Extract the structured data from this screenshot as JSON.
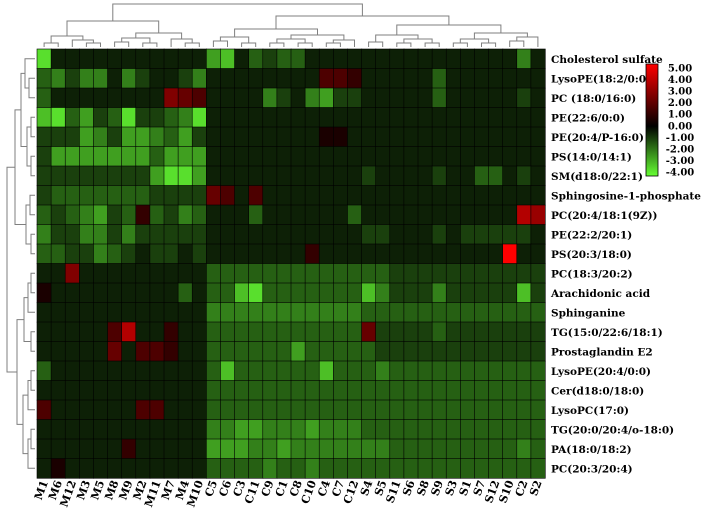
{
  "chart_data": {
    "type": "heatmap",
    "columns": [
      "M1",
      "M6",
      "M12",
      "M3",
      "M5",
      "M8",
      "M9",
      "M2",
      "M11",
      "M7",
      "M4",
      "M10",
      "C5",
      "C6",
      "C3",
      "C11",
      "C9",
      "C1",
      "C8",
      "C10",
      "C4",
      "C7",
      "C12",
      "S4",
      "S5",
      "S11",
      "S6",
      "S8",
      "S9",
      "S3",
      "S1",
      "S7",
      "S12",
      "S10",
      "C2",
      "S2"
    ],
    "rows": [
      "Cholesterol sulfate",
      "LysoPE(18:2/0:0)",
      "PC (18:0/16:0)",
      "PE(22:6/0:0)",
      "PE(20:4/P-16:0)",
      "PS(14:0/14:1)",
      "SM(d18:0/22:1)",
      "Sphingosine-1-phosphate",
      "PC(20:4/18:1(9Z))",
      "PE(22:2/20:1)",
      "PS(20:3/18:0)",
      "PC(18:3/20:2)",
      "Arachidonic acid",
      "Sphinganine",
      "TG(15:0/22:6/18:1)",
      "Prostaglandin E2",
      "LysoPE(20:4/0:0)",
      "Cer(d18:0/18:0)",
      "LysoPC(17:0)",
      "TG(20:0/20:4/o-18:0)",
      "PA(18:0/18:2)",
      "PC(20:3/20:4)"
    ],
    "values": [
      [
        -3.5,
        -0.5,
        -0.5,
        -0.5,
        -0.5,
        -0.5,
        -0.5,
        -0.5,
        -0.5,
        -0.5,
        -0.5,
        -0.5,
        -2.5,
        -3.0,
        -0.5,
        -1.5,
        -1.0,
        -1.5,
        -1.5,
        -0.5,
        -0.5,
        -0.5,
        -0.5,
        -0.5,
        -0.5,
        -0.5,
        -0.5,
        -0.5,
        -0.5,
        -0.5,
        -0.5,
        -0.5,
        -0.5,
        -0.5,
        -2.0,
        -0.5
      ],
      [
        -1.5,
        -2.0,
        -1.0,
        -2.0,
        -2.0,
        -0.5,
        -2.0,
        -1.0,
        -0.5,
        -0.5,
        -1.0,
        -2.0,
        -0.5,
        -0.5,
        -0.5,
        -0.5,
        -0.5,
        -0.5,
        -0.5,
        -0.5,
        1.5,
        1.5,
        1.0,
        -0.5,
        -0.5,
        -0.5,
        -0.5,
        -0.5,
        -1.5,
        -0.5,
        -0.5,
        -0.5,
        -0.5,
        -0.5,
        -0.5,
        -0.5
      ],
      [
        -1.5,
        -0.5,
        -0.5,
        -0.5,
        -0.5,
        -0.5,
        -0.5,
        -0.5,
        -0.5,
        2.5,
        2.0,
        1.5,
        -0.5,
        -0.5,
        -0.5,
        -0.5,
        -2.0,
        -1.0,
        -0.5,
        -2.0,
        -2.5,
        -1.0,
        -1.0,
        -0.5,
        -0.5,
        -0.5,
        -0.5,
        -0.5,
        -1.5,
        -0.5,
        -0.5,
        -0.5,
        -0.5,
        -0.5,
        -1.0,
        -0.5
      ],
      [
        -3.0,
        -3.5,
        -1.5,
        -2.5,
        -1.0,
        -1.5,
        -3.5,
        -1.0,
        -1.0,
        -1.5,
        -2.0,
        -3.5,
        -0.5,
        -0.5,
        -0.5,
        -0.5,
        -0.5,
        -0.5,
        -0.5,
        -0.5,
        -0.5,
        -0.5,
        -0.5,
        -0.5,
        -0.5,
        -0.5,
        -0.5,
        -0.5,
        -0.5,
        -0.5,
        -0.5,
        -0.5,
        -0.5,
        -0.5,
        -0.5,
        -0.5
      ],
      [
        -1.0,
        -1.0,
        -1.0,
        -2.5,
        -2.0,
        -1.0,
        -2.5,
        -2.5,
        -2.0,
        -1.5,
        -2.5,
        -1.0,
        -0.5,
        -0.5,
        -0.5,
        -0.5,
        -0.5,
        -0.5,
        -0.5,
        -0.5,
        0.5,
        0.5,
        -0.5,
        -0.5,
        -0.5,
        -0.5,
        -0.5,
        -0.5,
        -0.5,
        -0.5,
        -0.5,
        -0.5,
        -0.5,
        -0.5,
        -0.5,
        -0.5
      ],
      [
        -1.0,
        -2.5,
        -2.5,
        -2.5,
        -2.5,
        -2.5,
        -2.5,
        -2.5,
        -1.5,
        -2.5,
        -2.5,
        -2.5,
        -0.5,
        -0.5,
        -0.5,
        -0.5,
        -0.5,
        -0.5,
        -0.5,
        -0.5,
        -0.5,
        -0.5,
        -0.5,
        -0.5,
        -0.5,
        -0.5,
        -0.5,
        -0.5,
        -0.5,
        -0.5,
        -0.5,
        -0.5,
        -0.5,
        -0.5,
        -0.5,
        -0.5
      ],
      [
        -1.0,
        -1.0,
        -1.0,
        -1.0,
        -1.0,
        -1.0,
        -1.0,
        -1.0,
        -2.5,
        -3.5,
        -3.5,
        -2.5,
        -0.5,
        -0.5,
        -0.5,
        -0.5,
        -0.5,
        -0.5,
        -0.5,
        -0.5,
        -0.5,
        -0.5,
        -0.5,
        -1.0,
        -0.5,
        -0.5,
        -0.5,
        -0.5,
        -1.0,
        -0.5,
        -0.5,
        -1.5,
        -1.5,
        -0.5,
        -1.0,
        -0.5
      ],
      [
        -1.0,
        -1.5,
        -1.5,
        -1.5,
        -1.5,
        -1.5,
        -1.5,
        -1.5,
        -1.0,
        -1.0,
        -1.0,
        -1.0,
        2.0,
        1.5,
        -0.5,
        1.5,
        -0.5,
        -0.5,
        -0.5,
        -0.5,
        -0.5,
        -0.5,
        -0.5,
        -0.5,
        -0.5,
        -0.5,
        -0.5,
        -0.5,
        -0.5,
        -0.5,
        -0.5,
        -0.5,
        -0.5,
        -0.5,
        -0.5,
        -0.5
      ],
      [
        -1.5,
        -1.0,
        -1.5,
        -2.0,
        -2.5,
        -1.0,
        -1.5,
        1.0,
        -1.5,
        -1.0,
        -2.0,
        -1.5,
        -0.5,
        -0.5,
        -0.5,
        -1.5,
        -0.5,
        -0.5,
        -0.5,
        -0.5,
        -0.5,
        -0.5,
        -1.5,
        -0.5,
        -0.5,
        -0.5,
        -0.5,
        -0.5,
        -0.5,
        -0.5,
        -0.5,
        -0.5,
        -0.5,
        -0.5,
        3.5,
        3.0
      ],
      [
        -2.0,
        -1.0,
        -1.0,
        -2.0,
        -2.0,
        -1.0,
        -2.0,
        -1.0,
        -1.0,
        -1.0,
        -1.0,
        -1.0,
        -0.5,
        -0.5,
        -0.5,
        -0.5,
        -0.5,
        -0.5,
        -0.5,
        -0.5,
        -0.5,
        -0.5,
        -0.5,
        -1.0,
        -1.0,
        -0.5,
        -0.5,
        -0.5,
        -1.0,
        -0.5,
        -1.0,
        -1.0,
        -1.0,
        -1.0,
        -1.0,
        -0.5
      ],
      [
        -1.5,
        -1.5,
        -1.0,
        -1.0,
        -2.0,
        -1.5,
        -1.0,
        -0.5,
        -1.0,
        -1.0,
        -0.5,
        -1.0,
        -0.5,
        -0.5,
        -0.5,
        -0.5,
        -0.5,
        -0.5,
        -0.5,
        1.0,
        -0.5,
        -0.5,
        -0.5,
        -0.5,
        -0.5,
        -0.5,
        -0.5,
        -0.5,
        -0.5,
        -0.5,
        -0.5,
        -0.5,
        -0.5,
        5.0,
        -0.5,
        -0.5
      ],
      [
        -0.5,
        -0.5,
        2.5,
        -0.5,
        -0.5,
        -0.5,
        -0.5,
        -0.5,
        -0.5,
        -0.5,
        -0.5,
        -0.5,
        -1.5,
        -1.5,
        -1.5,
        -1.5,
        -1.5,
        -1.5,
        -1.5,
        -1.5,
        -1.5,
        -1.5,
        -1.5,
        -1.5,
        -1.5,
        -1.0,
        -1.0,
        -1.0,
        -1.0,
        -1.0,
        -1.0,
        -1.0,
        -1.0,
        -1.0,
        -1.0,
        -1.0
      ],
      [
        0.5,
        -0.5,
        -0.5,
        -0.5,
        -0.5,
        -0.5,
        -0.5,
        -0.5,
        -0.5,
        -0.5,
        -1.5,
        -0.5,
        -1.5,
        -1.5,
        -3.0,
        -3.5,
        -1.5,
        -1.5,
        -1.5,
        -1.5,
        -1.5,
        -1.5,
        -1.5,
        -3.0,
        -2.0,
        -1.0,
        -1.0,
        -1.0,
        -2.0,
        -1.0,
        -1.0,
        -1.0,
        -1.0,
        -1.0,
        -3.0,
        -1.0
      ],
      [
        -0.5,
        -0.5,
        -0.5,
        -0.5,
        -0.5,
        -0.5,
        -0.5,
        -0.5,
        -0.5,
        -0.5,
        -0.5,
        -0.5,
        -2.0,
        -2.0,
        -2.0,
        -2.0,
        -2.0,
        -2.0,
        -2.0,
        -2.0,
        -2.0,
        -2.0,
        -2.0,
        -1.5,
        -1.5,
        -1.5,
        -1.5,
        -1.5,
        -1.5,
        -1.5,
        -1.5,
        -1.5,
        -1.5,
        -1.5,
        -1.5,
        -1.5
      ],
      [
        -0.5,
        -0.5,
        -0.5,
        -0.5,
        -0.5,
        1.5,
        3.5,
        -0.5,
        -0.5,
        1.0,
        -0.5,
        -0.5,
        -1.5,
        -1.5,
        -1.5,
        -1.5,
        -1.5,
        -1.5,
        -1.5,
        -1.5,
        -1.5,
        -1.5,
        -1.5,
        2.0,
        -1.0,
        -1.0,
        -1.0,
        -1.0,
        -1.5,
        -1.0,
        -1.0,
        -1.0,
        -1.0,
        -1.0,
        -1.0,
        -1.0
      ],
      [
        -0.5,
        -0.5,
        -0.5,
        -0.5,
        -0.5,
        2.0,
        -0.5,
        1.5,
        1.5,
        1.0,
        -0.5,
        -0.5,
        -1.5,
        -1.5,
        -1.5,
        -1.5,
        -1.5,
        -1.5,
        -2.5,
        -1.5,
        -1.5,
        -1.5,
        -1.5,
        -1.5,
        -1.0,
        -1.0,
        -1.0,
        -1.0,
        -1.0,
        -1.0,
        -1.0,
        -1.0,
        -1.0,
        -1.0,
        -1.0,
        -1.0
      ],
      [
        -1.5,
        -0.5,
        -0.5,
        -0.5,
        -0.5,
        -0.5,
        -0.5,
        -0.5,
        -0.5,
        -0.5,
        -0.5,
        -0.5,
        -1.5,
        -3.0,
        -1.5,
        -1.5,
        -1.5,
        -1.5,
        -1.5,
        -1.5,
        -3.0,
        -1.5,
        -1.5,
        -1.5,
        -2.0,
        -1.5,
        -1.5,
        -1.5,
        -1.5,
        -1.5,
        -1.5,
        -1.5,
        -1.5,
        -1.5,
        -1.5,
        -1.5
      ],
      [
        -0.5,
        -0.5,
        -0.5,
        -0.5,
        -0.5,
        -0.5,
        -0.5,
        -0.5,
        -0.5,
        -0.5,
        -0.5,
        -0.5,
        -1.5,
        -1.5,
        -1.5,
        -1.5,
        -1.5,
        -1.5,
        -1.5,
        -1.5,
        -1.5,
        -1.5,
        -1.5,
        -1.5,
        -1.5,
        -1.5,
        -1.5,
        -1.5,
        -1.5,
        -1.5,
        -1.5,
        -1.5,
        -1.5,
        -1.5,
        -1.5,
        -1.5
      ],
      [
        1.5,
        -0.5,
        -0.5,
        -0.5,
        -0.5,
        -0.5,
        -0.5,
        1.5,
        1.5,
        -0.5,
        -0.5,
        -0.5,
        -1.5,
        -1.5,
        -1.5,
        -1.5,
        -1.5,
        -1.5,
        -1.5,
        -1.5,
        -1.5,
        -1.5,
        -1.5,
        -1.5,
        -1.5,
        -1.5,
        -1.5,
        -1.5,
        -1.5,
        -1.5,
        -1.5,
        -1.5,
        -1.5,
        -1.5,
        -1.5,
        -1.5
      ],
      [
        -0.5,
        -0.5,
        -0.5,
        -0.5,
        -0.5,
        -0.5,
        -0.5,
        -0.5,
        -0.5,
        -0.5,
        -0.5,
        -0.5,
        -2.0,
        -2.0,
        -2.5,
        -2.5,
        -2.0,
        -2.0,
        -2.0,
        -2.5,
        -2.0,
        -2.0,
        -2.0,
        -1.5,
        -1.5,
        -1.5,
        -1.5,
        -1.5,
        -1.5,
        -1.5,
        -1.5,
        -1.5,
        -1.5,
        -1.5,
        -1.5,
        -1.5
      ],
      [
        -0.5,
        -0.5,
        -0.5,
        -0.5,
        -0.5,
        -0.5,
        1.0,
        -0.5,
        -0.5,
        -0.5,
        -0.5,
        -0.5,
        -2.5,
        -2.5,
        -2.5,
        -2.0,
        -2.0,
        -2.5,
        -2.0,
        -2.0,
        -2.0,
        -2.0,
        -2.0,
        -2.0,
        -2.0,
        -1.5,
        -1.5,
        -1.5,
        -1.5,
        -1.5,
        -1.5,
        -1.5,
        -1.5,
        -1.5,
        -2.0,
        -1.5
      ],
      [
        -0.5,
        0.5,
        -0.5,
        -0.5,
        -0.5,
        -0.5,
        -0.5,
        -0.5,
        -0.5,
        -0.5,
        -0.5,
        -0.5,
        -1.5,
        -1.5,
        -1.5,
        -1.5,
        -2.0,
        -1.5,
        -1.5,
        -2.0,
        -1.5,
        -1.5,
        -1.5,
        -1.5,
        -1.5,
        -1.5,
        -1.5,
        -1.5,
        -1.5,
        -1.5,
        -1.5,
        -1.5,
        -1.5,
        -1.5,
        -1.5,
        -1.5
      ]
    ],
    "color_scale": {
      "min": -4.0,
      "mid": 0.0,
      "max": 5.0,
      "low_color": "#66ff33",
      "mid_color": "#000000",
      "high_color": "#ff0000",
      "ticks": [
        "5.00",
        "4.00",
        "3.00",
        "2.00",
        "1.00",
        "0.00",
        "-1.00",
        "-2.00",
        "-3.00",
        "-4.00"
      ]
    },
    "legend_placement": "right",
    "dendrograms": [
      "top",
      "left"
    ],
    "grid": false
  }
}
